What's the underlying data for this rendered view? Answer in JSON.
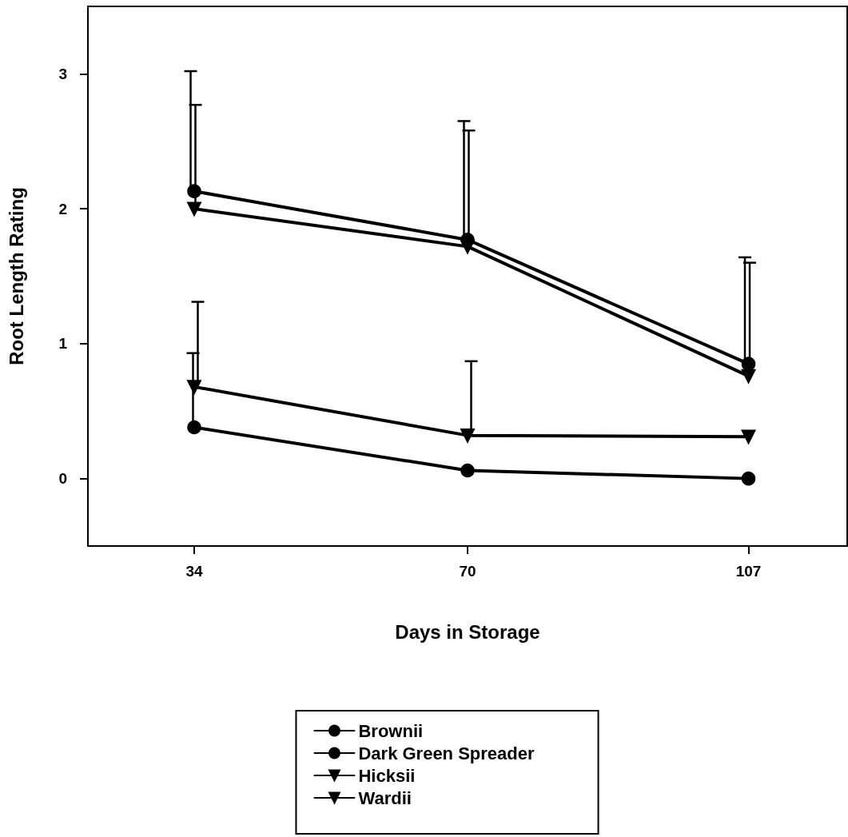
{
  "chart_data": {
    "type": "line",
    "xlabel": "Days in Storage",
    "ylabel": "Root Length Rating",
    "x": [
      34,
      70,
      107
    ],
    "xlim": [
      20,
      120
    ],
    "xticks": [
      34,
      70,
      107
    ],
    "ylim": [
      -0.5,
      3.5
    ],
    "yticks": [
      0,
      1,
      2,
      3
    ],
    "grid": false,
    "legend": "bottom",
    "line_style": "solid",
    "series": [
      {
        "name": "Brownii",
        "color": "#000000",
        "marker": "circle",
        "values": [
          2.13,
          1.77,
          0.85
        ],
        "errors": [
          [
            2.13,
            3.02
          ],
          [
            1.77,
            2.65
          ],
          [
            0.85,
            1.64
          ]
        ]
      },
      {
        "name": "Dark Green Spreader",
        "color": "#000000",
        "marker": "circle",
        "values": [
          0.38,
          0.06,
          0.0
        ],
        "errors": [
          [
            0.38,
            0.93
          ],
          null,
          null
        ]
      },
      {
        "name": "Hicksii",
        "color": "#000000",
        "marker": "triangle",
        "values": [
          2.0,
          1.72,
          0.76
        ],
        "errors": [
          [
            2.0,
            2.77
          ],
          [
            1.72,
            2.58
          ],
          [
            0.76,
            1.6
          ]
        ]
      },
      {
        "name": "Wardii",
        "color": "#000000",
        "marker": "triangle",
        "values": [
          0.68,
          0.32,
          0.31
        ],
        "errors": [
          [
            0.68,
            1.31
          ],
          [
            0.32,
            0.87
          ],
          null
        ]
      }
    ]
  }
}
